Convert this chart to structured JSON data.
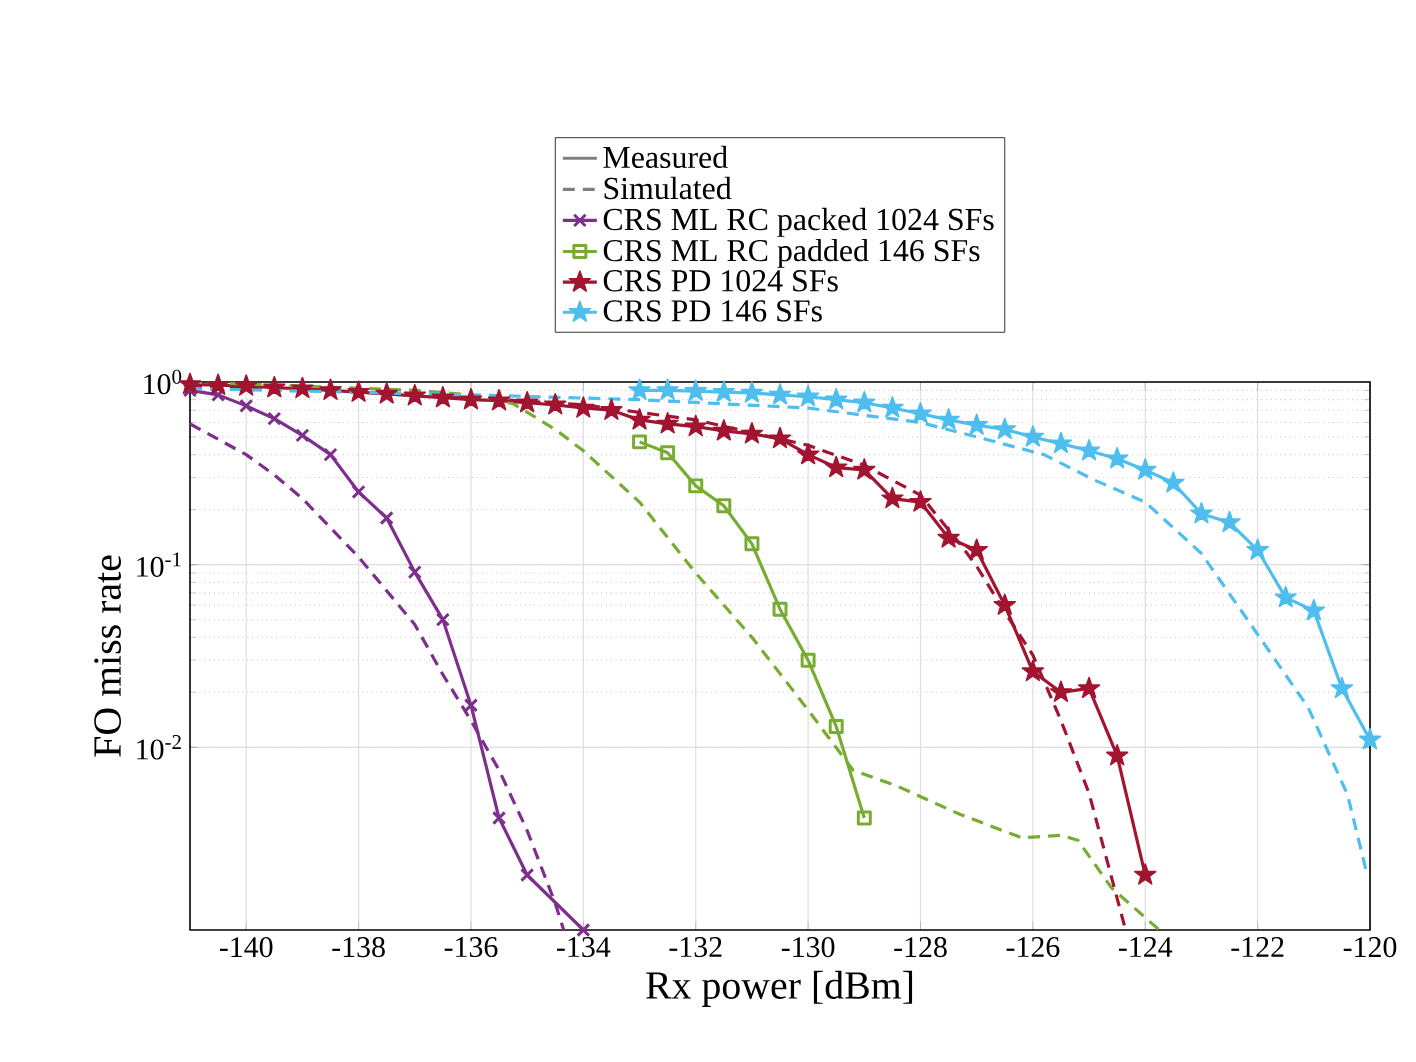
{
  "chart_data": {
    "type": "line",
    "xlabel": "Rx power [dBm]",
    "ylabel": "FO miss rate",
    "log": "y",
    "grid": true,
    "legend": "top",
    "xlim": [
      -141,
      -120
    ],
    "ylim": [
      0.001,
      1
    ],
    "xticks": [
      -140,
      -138,
      -136,
      -134,
      -132,
      -130,
      -128,
      -126,
      -124,
      -122,
      -120
    ],
    "yticks": [
      {
        "value": 0.01,
        "label": "10$^{-2}$"
      },
      {
        "value": 0.1,
        "label": "10$^{-1}$"
      },
      {
        "value": 1,
        "label": "10$^{0}$"
      }
    ],
    "series": [
      {
        "name": "Measured",
        "color": "#808080",
        "line_style": "solid",
        "marker": "none"
      },
      {
        "name": "Simulated",
        "color": "#808080",
        "line_style": "dashed",
        "marker": "none"
      },
      {
        "name": "CRS ML RC packed 1024 SFs",
        "color": "#7e2f8e",
        "line_style": "solid",
        "marker": "cross",
        "x": [
          -141,
          -140.5,
          -140,
          -139.5,
          -139,
          -138.5,
          -138,
          -137.5,
          -137,
          -136.5,
          -136,
          -135.5,
          -135,
          -134
        ],
        "values": [
          0.9,
          0.85,
          0.74,
          0.63,
          0.51,
          0.4,
          0.25,
          0.18,
          0.091,
          0.05,
          0.017,
          0.0041,
          0.002,
          0.001
        ]
      },
      {
        "name": "CRS ML RC padded 146 SFs",
        "color": "#77ac30",
        "line_style": "solid",
        "marker": "square",
        "x": [
          -133,
          -132.5,
          -132,
          -131.5,
          -131,
          -130.5,
          -130,
          -129.5,
          -129
        ],
        "values": [
          0.47,
          0.41,
          0.27,
          0.21,
          0.13,
          0.057,
          0.03,
          0.013,
          0.0041
        ]
      },
      {
        "name": "CRS PD 1024 SFs",
        "color": "#a2142f",
        "line_style": "solid",
        "marker": "star",
        "x": [
          -141,
          -140.5,
          -140,
          -139.5,
          -139,
          -138.5,
          -138,
          -137.5,
          -137,
          -136.5,
          -136,
          -135.5,
          -135,
          -134.5,
          -134,
          -133.5,
          -133,
          -132.5,
          -132,
          -131.5,
          -131,
          -130.5,
          -130,
          -129.5,
          -129,
          -128.5,
          -128,
          -127.5,
          -127,
          -126.5,
          -126,
          -125.5,
          -125,
          -124.5,
          -124
        ],
        "values": [
          0.97,
          0.96,
          0.95,
          0.93,
          0.92,
          0.9,
          0.88,
          0.86,
          0.84,
          0.82,
          0.8,
          0.79,
          0.77,
          0.75,
          0.72,
          0.7,
          0.62,
          0.59,
          0.57,
          0.54,
          0.52,
          0.49,
          0.4,
          0.34,
          0.33,
          0.23,
          0.22,
          0.14,
          0.12,
          0.06,
          0.026,
          0.02,
          0.021,
          0.009,
          0.002
        ]
      },
      {
        "name": "CRS PD 146 SFs",
        "color": "#4dbeee",
        "line_style": "solid",
        "marker": "star",
        "x": [
          -133,
          -132.5,
          -132,
          -131.5,
          -131,
          -130.5,
          -130,
          -129.5,
          -129,
          -128.5,
          -128,
          -127.5,
          -127,
          -126.5,
          -126,
          -125.5,
          -125,
          -124.5,
          -124,
          -123.5,
          -123,
          -122.5,
          -122,
          -121.5,
          -121,
          -120.5,
          -120
        ],
        "values": [
          0.9,
          0.9,
          0.89,
          0.88,
          0.87,
          0.85,
          0.83,
          0.8,
          0.77,
          0.72,
          0.67,
          0.62,
          0.58,
          0.55,
          0.5,
          0.46,
          0.42,
          0.38,
          0.33,
          0.28,
          0.19,
          0.17,
          0.12,
          0.066,
          0.056,
          0.021,
          0.011
        ]
      },
      {
        "color": "#7e2f8e",
        "line_style": "dashed",
        "marker": "none",
        "x": [
          -141,
          -140,
          -139.5,
          -139,
          -138,
          -137,
          -136.5,
          -136,
          -135.5,
          -135,
          -134.5,
          -134.35
        ],
        "values": [
          0.59,
          0.4,
          0.31,
          0.23,
          0.11,
          0.047,
          0.025,
          0.014,
          0.0075,
          0.0035,
          0.0014,
          0.001
        ]
      },
      {
        "color": "#77ac30",
        "line_style": "dashed",
        "marker": "none",
        "x": [
          -141,
          -139,
          -137,
          -136,
          -135.25,
          -134.5,
          -134,
          -133,
          -132,
          -131,
          -130,
          -129.2,
          -128.4,
          -127.3,
          -126.2,
          -125.5,
          -125.2,
          -124.6,
          -123.75
        ],
        "values": [
          1,
          0.95,
          0.9,
          0.85,
          0.76,
          0.55,
          0.42,
          0.22,
          0.09,
          0.04,
          0.016,
          0.0075,
          0.0061,
          0.0043,
          0.0032,
          0.0033,
          0.0031,
          0.0017,
          0.001
        ]
      },
      {
        "color": "#a2142f",
        "line_style": "dashed",
        "marker": "none",
        "x": [
          -141,
          -138,
          -136,
          -134,
          -132,
          -130,
          -129,
          -128,
          -127.3,
          -127,
          -126.5,
          -126,
          -125.5,
          -125,
          -124.35
        ],
        "values": [
          0.95,
          0.88,
          0.82,
          0.75,
          0.62,
          0.45,
          0.35,
          0.24,
          0.13,
          0.098,
          0.055,
          0.032,
          0.014,
          0.0056,
          0.001
        ]
      },
      {
        "color": "#4dbeee",
        "line_style": "dashed",
        "marker": "none",
        "x": [
          -141,
          -136,
          -133,
          -130,
          -128,
          -127,
          -125.8,
          -124.9,
          -124,
          -123,
          -122.1,
          -121.1,
          -120.4,
          -120.05
        ],
        "values": [
          0.92,
          0.85,
          0.8,
          0.72,
          0.6,
          0.5,
          0.4,
          0.29,
          0.22,
          0.115,
          0.046,
          0.0165,
          0.0055,
          0.002
        ]
      }
    ]
  }
}
